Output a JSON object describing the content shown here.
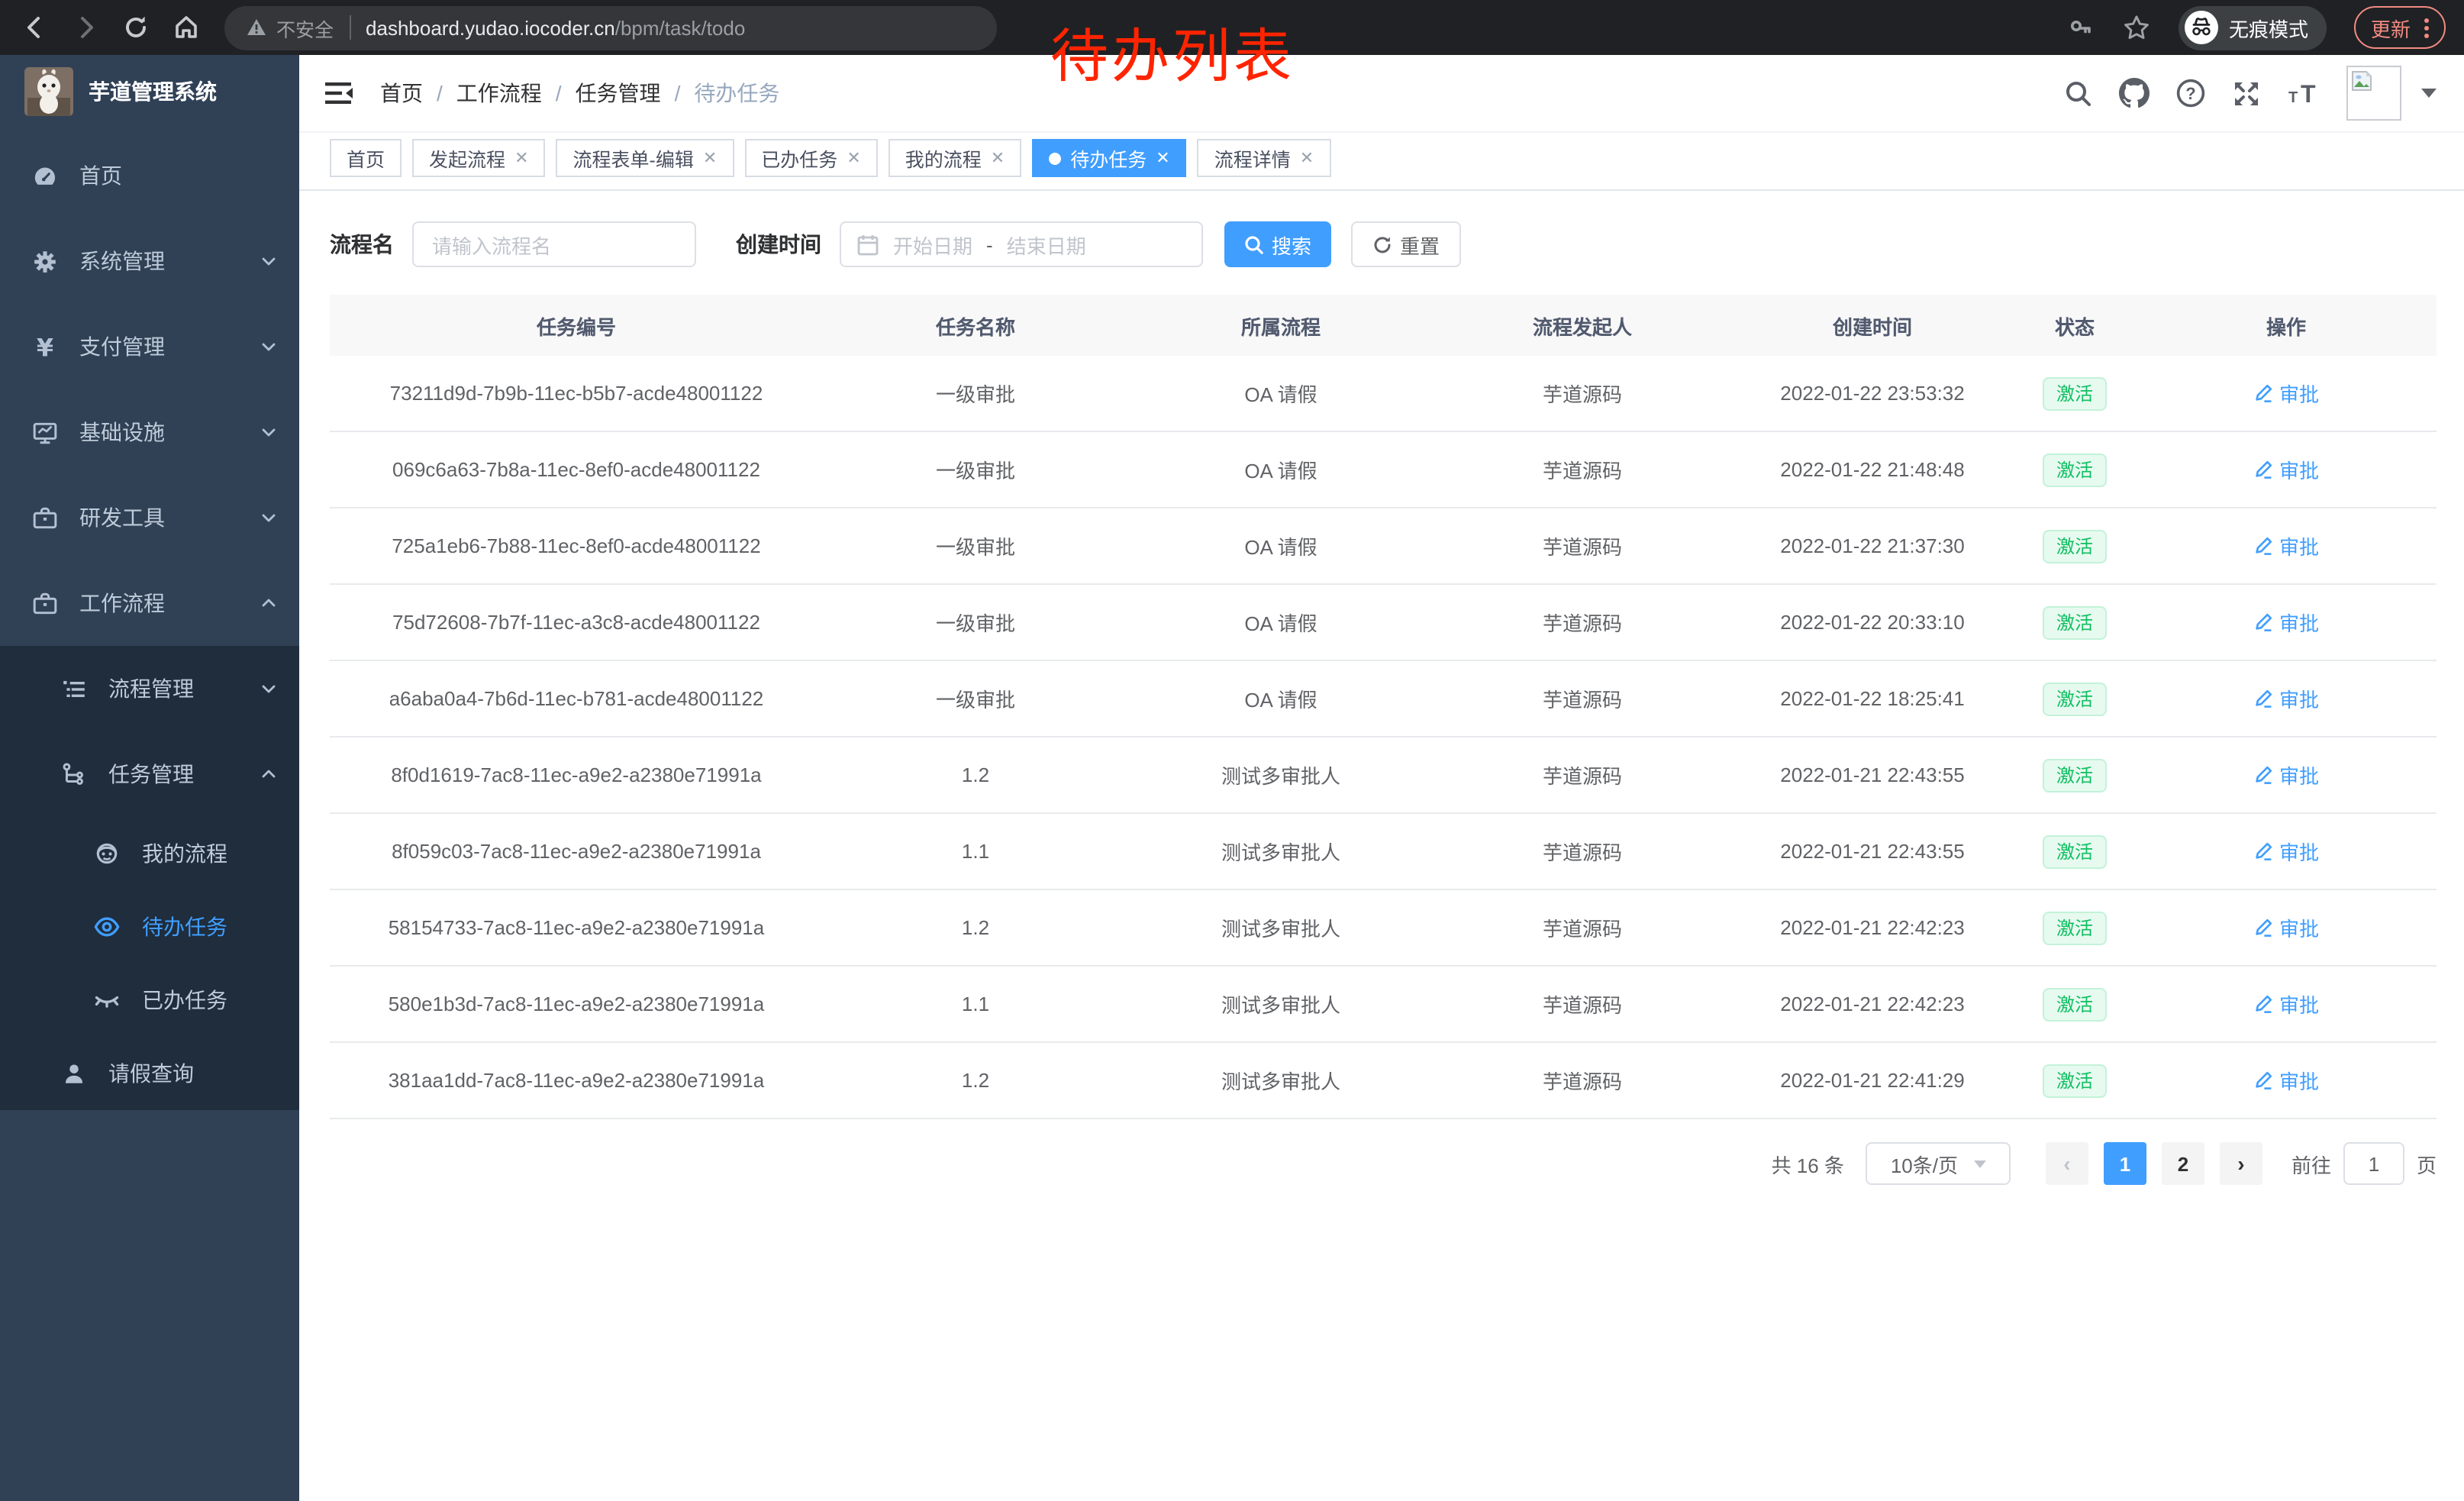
{
  "browser": {
    "security_label": "不安全",
    "url_host": "dashboard.yudao.iocoder.cn",
    "url_path": "/bpm/task/todo",
    "incognito_label": "无痕模式",
    "update_label": "更新"
  },
  "annotation": "待办列表",
  "sidebar": {
    "app_title": "芋道管理系统",
    "items": [
      {
        "id": "home",
        "icon": "dashboard",
        "label": "首页",
        "level": 1,
        "sub": false,
        "arrow": null,
        "active": false
      },
      {
        "id": "system",
        "icon": "gear",
        "label": "系统管理",
        "level": 1,
        "sub": false,
        "arrow": "down",
        "active": false
      },
      {
        "id": "payment",
        "icon": "yen",
        "label": "支付管理",
        "level": 1,
        "sub": false,
        "arrow": "down",
        "active": false
      },
      {
        "id": "infra",
        "icon": "monitor",
        "label": "基础设施",
        "level": 1,
        "sub": false,
        "arrow": "down",
        "active": false
      },
      {
        "id": "devtools",
        "icon": "briefcase",
        "label": "研发工具",
        "level": 1,
        "sub": false,
        "arrow": "down",
        "active": false
      },
      {
        "id": "workflow",
        "icon": "briefcase",
        "label": "工作流程",
        "level": 1,
        "sub": false,
        "arrow": "up",
        "active": false
      },
      {
        "id": "process-mgmt",
        "icon": "list",
        "label": "流程管理",
        "level": 2,
        "sub": true,
        "arrow": "down",
        "active": false
      },
      {
        "id": "task-mgmt",
        "icon": "tree",
        "label": "任务管理",
        "level": 2,
        "sub": true,
        "arrow": "up",
        "active": false
      },
      {
        "id": "my-process",
        "icon": "robot",
        "label": "我的流程",
        "level": 3,
        "sub": true,
        "arrow": null,
        "active": false
      },
      {
        "id": "todo-task",
        "icon": "eye",
        "label": "待办任务",
        "level": 3,
        "sub": true,
        "arrow": null,
        "active": true
      },
      {
        "id": "done-task",
        "icon": "eye-closed",
        "label": "已办任务",
        "level": 3,
        "sub": true,
        "arrow": null,
        "active": false
      },
      {
        "id": "leave-query",
        "icon": "user",
        "label": "请假查询",
        "level": 2,
        "sub": true,
        "arrow": null,
        "active": false,
        "short": true
      }
    ]
  },
  "breadcrumb": {
    "items": [
      "首页",
      "工作流程",
      "任务管理",
      "待办任务"
    ]
  },
  "tabs": [
    {
      "label": "首页",
      "closable": false,
      "active": false
    },
    {
      "label": "发起流程",
      "closable": true,
      "active": false
    },
    {
      "label": "流程表单-编辑",
      "closable": true,
      "active": false
    },
    {
      "label": "已办任务",
      "closable": true,
      "active": false
    },
    {
      "label": "我的流程",
      "closable": true,
      "active": false
    },
    {
      "label": "待办任务",
      "closable": true,
      "active": true
    },
    {
      "label": "流程详情",
      "closable": true,
      "active": false
    }
  ],
  "filters": {
    "name_label": "流程名",
    "name_placeholder": "请输入流程名",
    "time_label": "创建时间",
    "start_placeholder": "开始日期",
    "range_separator": "-",
    "end_placeholder": "结束日期",
    "search_label": "搜索",
    "reset_label": "重置"
  },
  "table": {
    "columns": [
      "任务编号",
      "任务名称",
      "所属流程",
      "流程发起人",
      "创建时间",
      "状态",
      "操作"
    ],
    "action_label": "审批",
    "rows": [
      {
        "id": "73211d9d-7b9b-11ec-b5b7-acde48001122",
        "name": "一级审批",
        "process": "OA 请假",
        "starter": "芋道源码",
        "time": "2022-01-22 23:53:32",
        "status": "激活"
      },
      {
        "id": "069c6a63-7b8a-11ec-8ef0-acde48001122",
        "name": "一级审批",
        "process": "OA 请假",
        "starter": "芋道源码",
        "time": "2022-01-22 21:48:48",
        "status": "激活"
      },
      {
        "id": "725a1eb6-7b88-11ec-8ef0-acde48001122",
        "name": "一级审批",
        "process": "OA 请假",
        "starter": "芋道源码",
        "time": "2022-01-22 21:37:30",
        "status": "激活"
      },
      {
        "id": "75d72608-7b7f-11ec-a3c8-acde48001122",
        "name": "一级审批",
        "process": "OA 请假",
        "starter": "芋道源码",
        "time": "2022-01-22 20:33:10",
        "status": "激活"
      },
      {
        "id": "a6aba0a4-7b6d-11ec-b781-acde48001122",
        "name": "一级审批",
        "process": "OA 请假",
        "starter": "芋道源码",
        "time": "2022-01-22 18:25:41",
        "status": "激活"
      },
      {
        "id": "8f0d1619-7ac8-11ec-a9e2-a2380e71991a",
        "name": "1.2",
        "process": "测试多审批人",
        "starter": "芋道源码",
        "time": "2022-01-21 22:43:55",
        "status": "激活"
      },
      {
        "id": "8f059c03-7ac8-11ec-a9e2-a2380e71991a",
        "name": "1.1",
        "process": "测试多审批人",
        "starter": "芋道源码",
        "time": "2022-01-21 22:43:55",
        "status": "激活"
      },
      {
        "id": "58154733-7ac8-11ec-a9e2-a2380e71991a",
        "name": "1.2",
        "process": "测试多审批人",
        "starter": "芋道源码",
        "time": "2022-01-21 22:42:23",
        "status": "激活"
      },
      {
        "id": "580e1b3d-7ac8-11ec-a9e2-a2380e71991a",
        "name": "1.1",
        "process": "测试多审批人",
        "starter": "芋道源码",
        "time": "2022-01-21 22:42:23",
        "status": "激活"
      },
      {
        "id": "381aa1dd-7ac8-11ec-a9e2-a2380e71991a",
        "name": "1.2",
        "process": "测试多审批人",
        "starter": "芋道源码",
        "time": "2022-01-21 22:41:29",
        "status": "激活"
      }
    ]
  },
  "pagination": {
    "total": "共 16 条",
    "page_size": "10条/页",
    "pages": [
      "1",
      "2"
    ],
    "active_page": "1",
    "prev_label": "‹",
    "next_label": "›",
    "goto_label": "前往",
    "goto_value": "1",
    "page_label": "页"
  },
  "colors": {
    "accent": "#409eff",
    "success_text": "#0fbf60",
    "success_bg": "#e7faf0",
    "sidebar_bg": "#304156",
    "sidebar_sub_bg": "#1f2d3d",
    "annotation_red": "#ff2400",
    "browser_bar": "#202124"
  }
}
